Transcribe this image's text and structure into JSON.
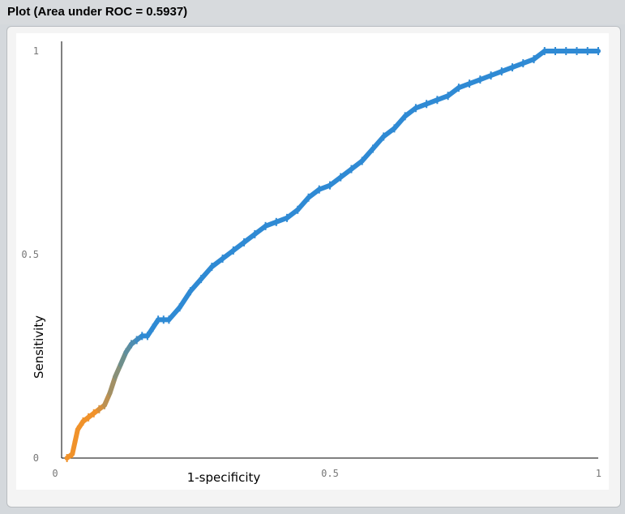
{
  "window": {
    "title": "Plot (Area under ROC = 0.5937)"
  },
  "chart_data": {
    "type": "line",
    "title": "Plot (Area under ROC = 0.5937)",
    "xlabel": "1-specificity",
    "ylabel": "Sensitivity",
    "xlim": [
      0,
      1
    ],
    "ylim": [
      0,
      1
    ],
    "x_ticks": [
      "0",
      "0.5",
      "1"
    ],
    "y_ticks": [
      "0",
      "0.5",
      "1"
    ],
    "grid": false,
    "area_under_roc": 0.5937,
    "colors": {
      "low_threshold": "#f0922b",
      "mid_threshold": "#6e8f8c",
      "high_threshold": "#2f8ad4",
      "axis": "#000000",
      "tick_text": "#777777"
    },
    "series": [
      {
        "x": [
          0.01,
          0.02,
          0.025,
          0.03,
          0.04,
          0.05,
          0.06,
          0.07,
          0.08,
          0.09,
          0.1,
          0.11,
          0.12,
          0.13,
          0.14,
          0.15,
          0.16,
          0.17,
          0.18,
          0.19,
          0.2,
          0.22,
          0.24,
          0.26,
          0.28,
          0.3,
          0.32,
          0.34,
          0.36,
          0.38,
          0.4,
          0.42,
          0.44,
          0.46,
          0.48,
          0.5,
          0.52,
          0.54,
          0.56,
          0.58,
          0.6,
          0.62,
          0.64,
          0.66,
          0.68,
          0.7,
          0.72,
          0.74,
          0.76,
          0.78,
          0.8,
          0.82,
          0.84,
          0.86,
          0.88,
          0.9,
          0.92,
          0.94,
          0.96,
          0.98,
          1.0
        ],
        "y": [
          0.0,
          0.01,
          0.04,
          0.07,
          0.09,
          0.1,
          0.11,
          0.12,
          0.13,
          0.16,
          0.2,
          0.23,
          0.26,
          0.28,
          0.29,
          0.3,
          0.3,
          0.32,
          0.34,
          0.34,
          0.34,
          0.37,
          0.41,
          0.44,
          0.47,
          0.49,
          0.51,
          0.53,
          0.55,
          0.57,
          0.58,
          0.59,
          0.61,
          0.64,
          0.66,
          0.67,
          0.69,
          0.71,
          0.73,
          0.76,
          0.79,
          0.81,
          0.84,
          0.86,
          0.87,
          0.88,
          0.89,
          0.91,
          0.92,
          0.93,
          0.94,
          0.95,
          0.96,
          0.97,
          0.98,
          1.0,
          1.0,
          1.0,
          1.0,
          1.0,
          1.0
        ]
      }
    ]
  }
}
